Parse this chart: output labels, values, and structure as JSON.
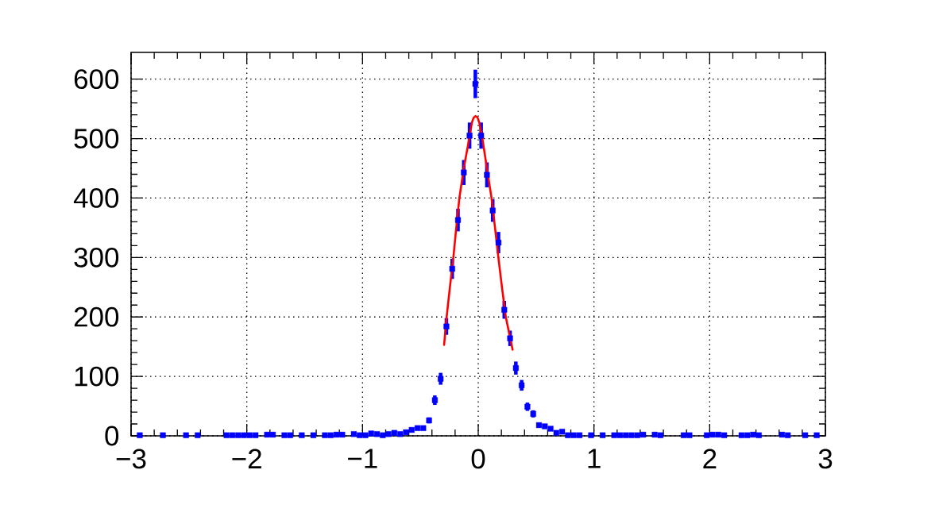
{
  "chart_data": {
    "type": "scatter",
    "xlim": [
      -3,
      3
    ],
    "xticks": [
      {
        "value": -3,
        "label": "−3"
      },
      {
        "value": -2,
        "label": "−2"
      },
      {
        "value": -1,
        "label": "−1"
      },
      0,
      1,
      2,
      3
    ],
    "ylim": [
      0,
      645
    ],
    "yticks": [
      0,
      100,
      200,
      300,
      400,
      500,
      600
    ],
    "grid": true,
    "series": [
      {
        "type": "scatter",
        "color": "#0000ff",
        "marker": "square",
        "x": [
          -2.925,
          -2.725,
          -2.525,
          -2.425,
          -2.175,
          -2.125,
          -2.075,
          -2.025,
          -1.975,
          -1.925,
          -1.825,
          -1.775,
          -1.675,
          -1.625,
          -1.525,
          -1.425,
          -1.325,
          -1.275,
          -1.225,
          -1.175,
          -1.075,
          -1.025,
          -0.975,
          -0.925,
          -0.875,
          -0.825,
          -0.775,
          -0.725,
          -0.675,
          -0.625,
          -0.575,
          -0.525,
          -0.475,
          -0.425,
          -0.375,
          -0.325,
          -0.275,
          -0.225,
          -0.175,
          -0.125,
          -0.075,
          -0.025,
          0.025,
          0.075,
          0.125,
          0.175,
          0.225,
          0.275,
          0.325,
          0.375,
          0.425,
          0.475,
          0.525,
          0.575,
          0.625,
          0.675,
          0.725,
          0.775,
          0.825,
          0.875,
          0.975,
          1.075,
          1.175,
          1.225,
          1.275,
          1.325,
          1.375,
          1.425,
          1.525,
          1.575,
          1.775,
          1.825,
          1.975,
          2.025,
          2.075,
          2.125,
          2.275,
          2.325,
          2.375,
          2.425,
          2.625,
          2.675,
          2.825,
          2.925
        ],
        "values": [
          1,
          1,
          1,
          1,
          1,
          1,
          1,
          1,
          1,
          1,
          2,
          2,
          1,
          1,
          1,
          1,
          1,
          1,
          2,
          2,
          3,
          1,
          1,
          4,
          3,
          1,
          3,
          5,
          3,
          6,
          10,
          13,
          13,
          26,
          60,
          96,
          184,
          281,
          363,
          443,
          505,
          592,
          505,
          439,
          379,
          325,
          212,
          164,
          114,
          85,
          49,
          37,
          18,
          16,
          12,
          5,
          7,
          1,
          1,
          1,
          1,
          1,
          1,
          1,
          1,
          1,
          1,
          2,
          2,
          1,
          1,
          1,
          1,
          2,
          2,
          1,
          1,
          1,
          2,
          1,
          2,
          1,
          1,
          1
        ],
        "errors": [
          null,
          null,
          null,
          null,
          null,
          null,
          null,
          null,
          null,
          null,
          null,
          null,
          null,
          null,
          null,
          null,
          null,
          null,
          null,
          null,
          null,
          null,
          null,
          null,
          null,
          null,
          null,
          null,
          null,
          null,
          null,
          null,
          null,
          5,
          8,
          10,
          14,
          17,
          19,
          21,
          22,
          24,
          22,
          21,
          19,
          18,
          15,
          13,
          11,
          9,
          7,
          6,
          null,
          null,
          null,
          null,
          null,
          null,
          null,
          null,
          null,
          null,
          null,
          null,
          null,
          null,
          null,
          null,
          null,
          null,
          null,
          null,
          null,
          null,
          null,
          null,
          null,
          null,
          null,
          null,
          null,
          null,
          null,
          null
        ]
      },
      {
        "type": "line",
        "color": "#ff0000",
        "x": [
          -0.295,
          -0.273,
          -0.245,
          -0.215,
          -0.19,
          -0.163,
          -0.125,
          -0.078,
          -0.055,
          -0.04,
          -0.023,
          -0.005,
          0.009,
          0.036,
          0.075,
          0.115,
          0.145,
          0.174,
          0.205,
          0.238,
          0.297
        ],
        "values": [
          153,
          200,
          250,
          300,
          350,
          400,
          450,
          500,
          527,
          535,
          538,
          535,
          527,
          500,
          450,
          400,
          350,
          300,
          250,
          200,
          145
        ]
      }
    ]
  }
}
